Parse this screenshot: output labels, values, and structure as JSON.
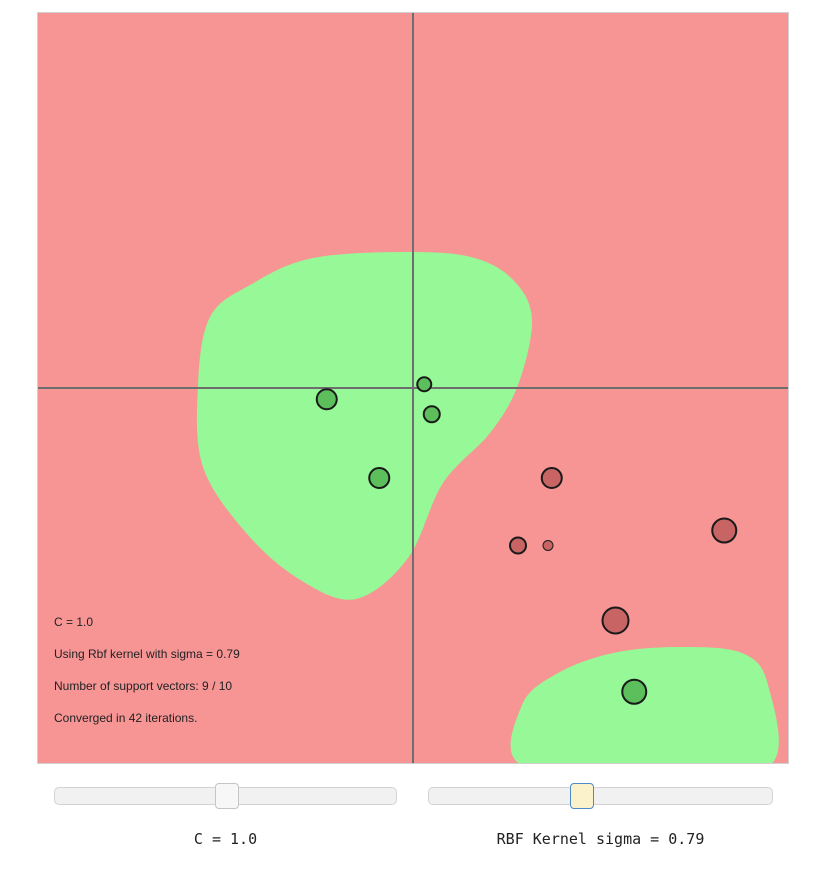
{
  "colors": {
    "negative_region": "#f79595",
    "positive_region": "#96f896",
    "axis_line": "#6e6e6e",
    "positive_point": "#5cbf5c",
    "negative_point": "#c86464"
  },
  "info": {
    "c_line": "C = 1.0",
    "kernel_line": "Using Rbf kernel with sigma = 0.79",
    "support_line": "Number of support vectors: 9 / 10",
    "converged_line": "Converged in 42 iterations."
  },
  "controls": {
    "c_slider": {
      "value_fraction": 0.5,
      "label": "C = 1.0"
    },
    "sigma_slider": {
      "value_fraction": 0.44,
      "label": "RBF Kernel sigma = 0.79"
    }
  },
  "points": [
    {
      "x": -0.23,
      "y": -0.03,
      "label": 1
    },
    {
      "x": 0.03,
      "y": 0.01,
      "label": 1
    },
    {
      "x": 0.05,
      "y": -0.07,
      "label": 1
    },
    {
      "x": -0.09,
      "y": -0.24,
      "label": 1
    },
    {
      "x": 0.59,
      "y": -0.81,
      "label": 1
    },
    {
      "x": 0.37,
      "y": -0.24,
      "label": -1
    },
    {
      "x": 0.28,
      "y": -0.42,
      "label": -1
    },
    {
      "x": 0.36,
      "y": -0.42,
      "label": -1
    },
    {
      "x": 0.83,
      "y": -0.38,
      "label": -1
    },
    {
      "x": 0.54,
      "y": -0.62,
      "label": -1
    }
  ]
}
